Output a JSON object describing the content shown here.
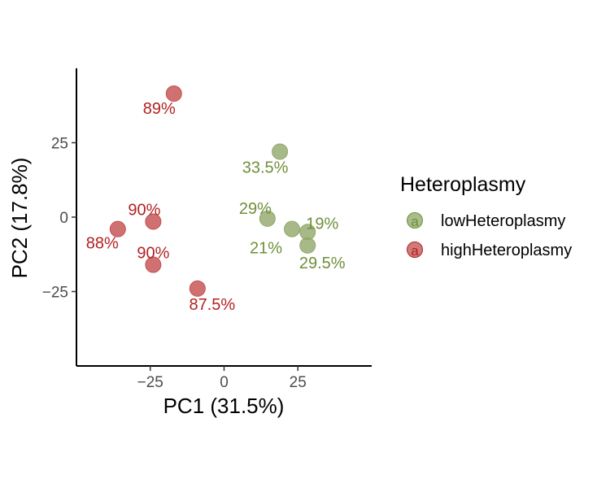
{
  "chart_data": {
    "type": "scatter",
    "title": "",
    "xlabel": "PC1 (31.5%)",
    "ylabel": "PC2 (17.8%)",
    "xlim": [
      -50,
      50
    ],
    "ylim": [
      -50,
      50
    ],
    "xticks": [
      -25,
      0,
      25
    ],
    "yticks": [
      -25,
      0,
      25
    ],
    "grid": false,
    "legend": {
      "title": "Heteroplasmy",
      "position": "right",
      "glyph": "a",
      "entries": [
        {
          "name": "lowHeteroplasmy",
          "color": "#6f8f3a"
        },
        {
          "name": "highHeteroplasmy",
          "color": "#b22222"
        }
      ]
    },
    "series": [
      {
        "name": "lowHeteroplasmy",
        "point_color": "#91a86a",
        "label_color": "#6f8f3a",
        "points": [
          {
            "x": 18.9,
            "y": 22.0,
            "label": "33.5%"
          },
          {
            "x": 14.7,
            "y": -0.5,
            "label": "29%"
          },
          {
            "x": 23.0,
            "y": -4.0,
            "label": "21%"
          },
          {
            "x": 28.3,
            "y": -5.0,
            "label": "19%"
          },
          {
            "x": 28.3,
            "y": -9.5,
            "label": "29.5%"
          }
        ]
      },
      {
        "name": "highHeteroplasmy",
        "point_color": "#c44e4e",
        "label_color": "#b22222",
        "points": [
          {
            "x": -17.0,
            "y": 41.5,
            "label": "89%"
          },
          {
            "x": -24.0,
            "y": -1.5,
            "label": "90%"
          },
          {
            "x": -36.0,
            "y": -4.0,
            "label": "88%"
          },
          {
            "x": -24.0,
            "y": -16.0,
            "label": "90%"
          },
          {
            "x": -9.0,
            "y": -24.0,
            "label": "87.5%"
          }
        ]
      }
    ]
  }
}
